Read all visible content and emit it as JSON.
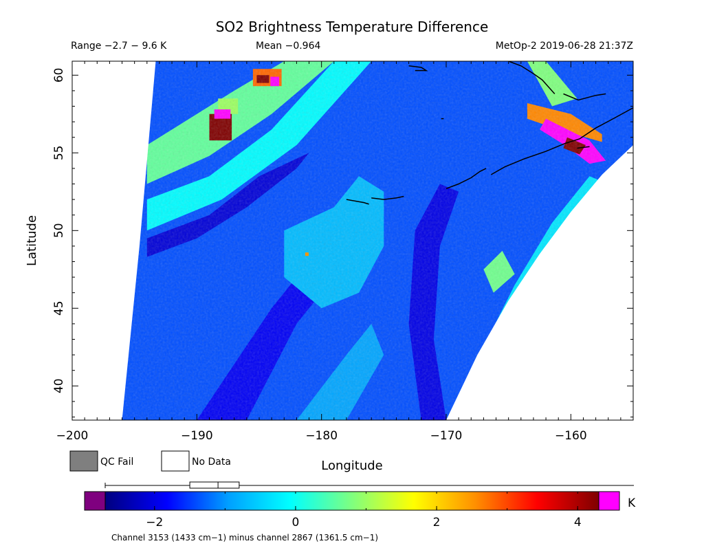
{
  "header": {
    "title": "SO2 Brightness Temperature Difference",
    "range_text": "Range −2.7 − 9.6 K",
    "mean_text": "Mean −0.964",
    "satellite_time": "MetOp-2 2019-06-28 21:37Z"
  },
  "chart_data": {
    "type": "heatmap",
    "title": "SO2 Brightness Temperature Difference",
    "xlabel": "Longitude",
    "ylabel": "Latitude",
    "xlim": [
      -200,
      -155
    ],
    "ylim": [
      37.8,
      60.9
    ],
    "x_ticks": [
      -200,
      -190,
      -180,
      -170,
      -160
    ],
    "x_tick_labels": [
      "−200",
      "−190",
      "−180",
      "−170",
      "−160"
    ],
    "y_ticks": [
      40,
      45,
      50,
      55,
      60
    ],
    "y_tick_labels": [
      "40",
      "45",
      "50",
      "55",
      "60"
    ],
    "value_range": [
      -2.7,
      9.6
    ],
    "mean": -0.964,
    "units": "K",
    "grid": false,
    "swath": {
      "left_edge": [
        [
          -196,
          37.8
        ],
        [
          -194.6,
          49
        ],
        [
          -193.3,
          60.9
        ]
      ],
      "right_edge_top": [
        [
          -155,
          55.5
        ],
        [
          -155,
          60.9
        ]
      ],
      "right_edge_curve": [
        [
          -170,
          37.8
        ],
        [
          -167.5,
          42
        ],
        [
          -165,
          45.5
        ],
        [
          -162.5,
          48.5
        ],
        [
          -160,
          51.2
        ],
        [
          -157.5,
          53.6
        ],
        [
          -155,
          55.5
        ]
      ],
      "background_value": -1.4
    },
    "features": [
      {
        "name": "green band left",
        "value": 0.6,
        "polygon": [
          [
            -194,
            55.5
          ],
          [
            -191,
            57
          ],
          [
            -187,
            59
          ],
          [
            -183,
            60.9
          ],
          [
            -179,
            60.9
          ],
          [
            -184,
            57.5
          ],
          [
            -189,
            54.8
          ],
          [
            -194,
            53
          ]
        ]
      },
      {
        "name": "cyan band",
        "value": -0.1,
        "polygon": [
          [
            -194,
            52
          ],
          [
            -189,
            53.5
          ],
          [
            -184,
            56.5
          ],
          [
            -179,
            60.9
          ],
          [
            -176,
            60.9
          ],
          [
            -182,
            55.5
          ],
          [
            -188,
            52
          ],
          [
            -194,
            50
          ]
        ]
      },
      {
        "name": "dark streak",
        "value": -2.1,
        "polygon": [
          [
            -194,
            49.5
          ],
          [
            -189,
            51
          ],
          [
            -185,
            53.5
          ],
          [
            -181,
            55
          ],
          [
            -182,
            54
          ],
          [
            -186,
            51.5
          ],
          [
            -190,
            49.5
          ],
          [
            -194,
            48.3
          ]
        ]
      },
      {
        "name": "dark lower band",
        "value": -1.9,
        "polygon": [
          [
            -190,
            37.8
          ],
          [
            -184,
            45
          ],
          [
            -180,
            49
          ],
          [
            -178,
            48
          ],
          [
            -182,
            44
          ],
          [
            -186,
            37.8
          ]
        ]
      },
      {
        "name": "light central region",
        "value": -0.7,
        "polygon": [
          [
            -183,
            50
          ],
          [
            -179,
            51.5
          ],
          [
            -177,
            53.5
          ],
          [
            -175,
            52.5
          ],
          [
            -175,
            49
          ],
          [
            -177,
            46
          ],
          [
            -180,
            45
          ],
          [
            -183,
            47
          ]
        ]
      },
      {
        "name": "light lower region",
        "value": -0.9,
        "polygon": [
          [
            -182,
            37.8
          ],
          [
            -178,
            42
          ],
          [
            -176,
            44
          ],
          [
            -175,
            42
          ],
          [
            -178,
            37.8
          ]
        ]
      },
      {
        "name": "dark right channel",
        "value": -2.0,
        "polygon": [
          [
            -172,
            37.8
          ],
          [
            -173,
            44
          ],
          [
            -172.5,
            50
          ],
          [
            -170.5,
            53
          ],
          [
            -169,
            52.5
          ],
          [
            -170.5,
            49
          ],
          [
            -171,
            43
          ],
          [
            -170,
            37.8
          ]
        ]
      },
      {
        "name": "cyan right arc",
        "value": -0.3,
        "polygon": [
          [
            -167,
            42.5
          ],
          [
            -164.5,
            46.5
          ],
          [
            -161.5,
            50.5
          ],
          [
            -158.5,
            53.5
          ],
          [
            -157,
            53
          ],
          [
            -160,
            49.5
          ],
          [
            -162.5,
            46
          ],
          [
            -165.5,
            41.5
          ]
        ]
      },
      {
        "name": "green patch right",
        "value": 0.7,
        "polygon": [
          [
            -167,
            47.5
          ],
          [
            -165.5,
            48.7
          ],
          [
            -164.5,
            47.2
          ],
          [
            -166.2,
            46
          ]
        ]
      },
      {
        "name": "green patch upper right",
        "value": 0.8,
        "polygon": [
          [
            -163.5,
            60.9
          ],
          [
            -162,
            60.9
          ],
          [
            -159.5,
            58.5
          ],
          [
            -161.5,
            58
          ]
        ]
      },
      {
        "name": "orange plume",
        "value": 2.6,
        "polygon": [
          [
            -163.5,
            58.2
          ],
          [
            -160,
            57.5
          ],
          [
            -157.5,
            56.2
          ],
          [
            -157.5,
            55.7
          ],
          [
            -161,
            56.5
          ],
          [
            -163.5,
            57.2
          ]
        ]
      },
      {
        "name": "magenta plume",
        "value": 9.6,
        "polygon": [
          [
            -162,
            57.2
          ],
          [
            -158.5,
            55.8
          ],
          [
            -157.2,
            54.5
          ],
          [
            -158.5,
            54.3
          ],
          [
            -160.5,
            55.5
          ],
          [
            -162.5,
            56.5
          ]
        ]
      },
      {
        "name": "dark red plume core",
        "value": 4.3,
        "polygon": [
          [
            -160.3,
            56
          ],
          [
            -158.8,
            55.5
          ],
          [
            -159.3,
            54.9
          ],
          [
            -160.6,
            55.3
          ]
        ]
      },
      {
        "name": "green patch upper left",
        "value": 1.0,
        "polygon": [
          [
            -188.3,
            58.5
          ],
          [
            -186.7,
            58.5
          ],
          [
            -186.7,
            57.5
          ],
          [
            -188.3,
            57.5
          ]
        ]
      },
      {
        "name": "hot spot left",
        "value": 4.3,
        "polygon": [
          [
            -189,
            57.5
          ],
          [
            -187.2,
            57.5
          ],
          [
            -187.2,
            55.8
          ],
          [
            -189,
            55.8
          ]
        ]
      },
      {
        "name": "hot spot left rim",
        "value": 9.6,
        "polygon": [
          [
            -188.6,
            57.8
          ],
          [
            -187.3,
            57.8
          ],
          [
            -187.3,
            57.2
          ],
          [
            -188.6,
            57.2
          ]
        ]
      },
      {
        "name": "orange spot top",
        "value": 2.8,
        "polygon": [
          [
            -185.5,
            60.4
          ],
          [
            -183.2,
            60.4
          ],
          [
            -183.2,
            59.3
          ],
          [
            -185.5,
            59.3
          ]
        ]
      },
      {
        "name": "dark red spot top",
        "value": 4.3,
        "polygon": [
          [
            -185.2,
            60
          ],
          [
            -184.2,
            60
          ],
          [
            -184.2,
            59.5
          ],
          [
            -185.2,
            59.5
          ]
        ]
      },
      {
        "name": "magenta spot top",
        "value": 9.6,
        "polygon": [
          [
            -184.1,
            59.9
          ],
          [
            -183.4,
            59.9
          ],
          [
            -183.4,
            59.3
          ],
          [
            -184.1,
            59.3
          ]
        ]
      }
    ],
    "coastlines": [
      [
        [
          -178,
          52
        ],
        [
          -177.3,
          51.9
        ],
        [
          -176.6,
          51.8
        ],
        [
          -176.2,
          51.7
        ]
      ],
      [
        [
          -176,
          52.1
        ],
        [
          -175,
          52
        ],
        [
          -174,
          52.1
        ],
        [
          -173.4,
          52.2
        ]
      ],
      [
        [
          -170,
          52.7
        ],
        [
          -169,
          53
        ],
        [
          -168,
          53.4
        ],
        [
          -167.3,
          53.8
        ],
        [
          -166.8,
          54
        ]
      ],
      [
        [
          -166.4,
          53.6
        ],
        [
          -165.3,
          54.1
        ],
        [
          -163.8,
          54.6
        ],
        [
          -162,
          55.1
        ],
        [
          -160.5,
          55.6
        ],
        [
          -159.3,
          55.9
        ],
        [
          -158,
          56.6
        ],
        [
          -156.6,
          57.2
        ],
        [
          -155,
          57.9
        ]
      ],
      [
        [
          -165,
          60.9
        ],
        [
          -164,
          60.6
        ],
        [
          -163,
          60.1
        ],
        [
          -162.3,
          59.7
        ],
        [
          -161.3,
          58.8
        ]
      ],
      [
        [
          -160.6,
          58.8
        ],
        [
          -159.4,
          58.4
        ],
        [
          -158,
          58.7
        ],
        [
          -157.2,
          58.8
        ]
      ],
      [
        [
          -159.5,
          55.3
        ],
        [
          -158.5,
          55.4
        ]
      ],
      [
        [
          -173,
          60.6
        ],
        [
          -172,
          60.5
        ],
        [
          -171.6,
          60.3
        ],
        [
          -172.5,
          60.3
        ]
      ],
      [
        [
          -170.4,
          57.2
        ],
        [
          -170.2,
          57.2
        ]
      ]
    ],
    "bad_pixels": [
      {
        "x": -181.2,
        "y": 48.5,
        "value": 2.5
      }
    ]
  },
  "legend": {
    "qc_fail_label": "QC Fail",
    "no_data_label": "No Data",
    "qc_fail_color": "#7f7f7f",
    "no_data_color": "#ffffff"
  },
  "colorbar": {
    "min": -2.7,
    "max": 4.3,
    "ticks": [
      -2,
      0,
      2,
      4
    ],
    "tick_labels": [
      "−2",
      "0",
      "2",
      "4"
    ],
    "under_color": "#7f007f",
    "over_color": "#ff00ff",
    "colors": [
      "#00007f",
      "#0000ff",
      "#00a0ff",
      "#00ffff",
      "#7fff7f",
      "#ffff00",
      "#ff8f00",
      "#ff0000",
      "#7f0000"
    ],
    "unit": "K",
    "histogram_box": {
      "q1": -1.5,
      "median": -1.1,
      "q3": -0.8
    }
  },
  "footnote": "Channel 3153 (1433 cm−1) minus channel 2867 (1361.5 cm−1)"
}
